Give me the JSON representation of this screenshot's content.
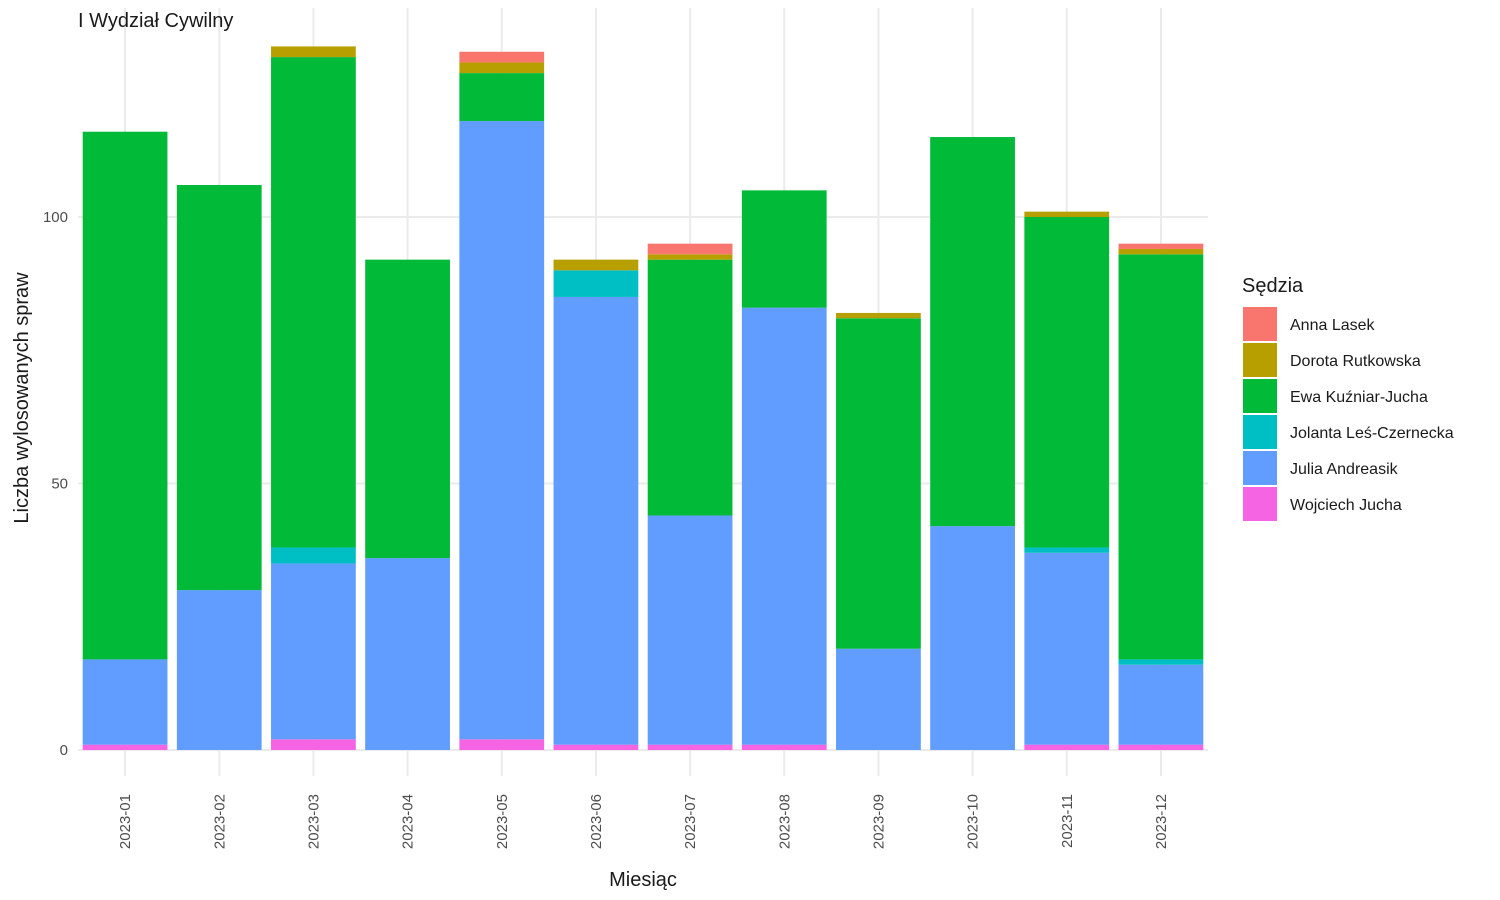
{
  "chart_data": {
    "type": "bar",
    "stacked": true,
    "title": "I Wydział Cywilny",
    "xlabel": "Miesiąc",
    "ylabel": "Liczba wylosowanych spraw",
    "ylim": [
      -5,
      138
    ],
    "yticks": [
      0,
      50,
      100
    ],
    "grid": true,
    "legend_title": "Sędzia",
    "legend_position": "right",
    "categories": [
      "2023-01",
      "2023-02",
      "2023-03",
      "2023-04",
      "2023-05",
      "2023-06",
      "2023-07",
      "2023-08",
      "2023-09",
      "2023-10",
      "2023-11",
      "2023-12"
    ],
    "series": [
      {
        "name": "Wojciech Jucha",
        "color": "#F564E3",
        "values": [
          1,
          0,
          2,
          0,
          2,
          1,
          1,
          1,
          0,
          0,
          1,
          1
        ]
      },
      {
        "name": "Julia Andreasik",
        "color": "#619CFF",
        "values": [
          16,
          30,
          33,
          36,
          116,
          84,
          43,
          82,
          19,
          42,
          36,
          15
        ]
      },
      {
        "name": "Jolanta Leś-Czernecka",
        "color": "#00BFC4",
        "values": [
          0,
          0,
          3,
          0,
          0,
          5,
          0,
          0,
          0,
          0,
          1,
          1
        ]
      },
      {
        "name": "Ewa Kuźniar-Jucha",
        "color": "#00BA38",
        "values": [
          99,
          76,
          92,
          56,
          9,
          0,
          48,
          22,
          62,
          73,
          62,
          76
        ]
      },
      {
        "name": "Dorota Rutkowska",
        "color": "#B79F00",
        "values": [
          0,
          0,
          2,
          0,
          2,
          2,
          1,
          0,
          1,
          0,
          1,
          1
        ]
      },
      {
        "name": "Anna Lasek",
        "color": "#F8766D",
        "values": [
          0,
          0,
          0,
          0,
          2,
          0,
          2,
          0,
          0,
          0,
          0,
          1
        ]
      }
    ],
    "legend_order": [
      "Anna Lasek",
      "Dorota Rutkowska",
      "Ewa Kuźniar-Jucha",
      "Jolanta Leś-Czernecka",
      "Julia Andreasik",
      "Wojciech Jucha"
    ]
  }
}
